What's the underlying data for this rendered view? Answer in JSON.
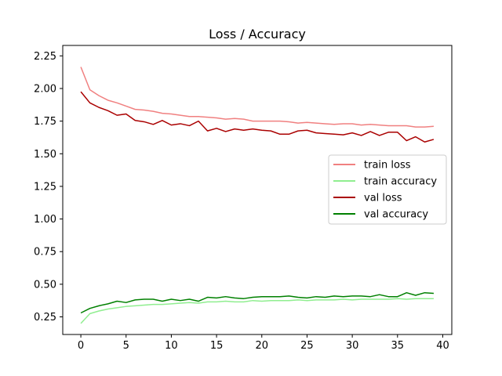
{
  "chart_data": {
    "type": "line",
    "title": "Loss / Accuracy",
    "xlabel": "",
    "ylabel": "",
    "xlim": [
      -2,
      41
    ],
    "ylim": [
      0.115,
      2.33
    ],
    "x_ticks": [
      0,
      5,
      10,
      15,
      20,
      25,
      30,
      35,
      40
    ],
    "y_ticks": [
      0.25,
      0.5,
      0.75,
      1.0,
      1.25,
      1.5,
      1.75,
      2.0,
      2.25
    ],
    "x_tick_labels": [
      "0",
      "5",
      "10",
      "15",
      "20",
      "25",
      "30",
      "35",
      "40"
    ],
    "y_tick_labels": [
      "0.25",
      "0.50",
      "0.75",
      "1.00",
      "1.25",
      "1.50",
      "1.75",
      "2.00",
      "2.25"
    ],
    "grid": false,
    "legend_position": "center-right",
    "x": [
      0,
      1,
      2,
      3,
      4,
      5,
      6,
      7,
      8,
      9,
      10,
      11,
      12,
      13,
      14,
      15,
      16,
      17,
      18,
      19,
      20,
      21,
      22,
      23,
      24,
      25,
      26,
      27,
      28,
      29,
      30,
      31,
      32,
      33,
      34,
      35,
      36,
      37,
      38,
      39
    ],
    "series": [
      {
        "name": "train loss",
        "color": "#f08080",
        "values": [
          2.165,
          1.99,
          1.945,
          1.91,
          1.89,
          1.865,
          1.84,
          1.835,
          1.825,
          1.81,
          1.805,
          1.795,
          1.785,
          1.785,
          1.78,
          1.775,
          1.765,
          1.77,
          1.765,
          1.75,
          1.75,
          1.75,
          1.75,
          1.745,
          1.735,
          1.74,
          1.735,
          1.73,
          1.725,
          1.73,
          1.73,
          1.72,
          1.725,
          1.72,
          1.715,
          1.715,
          1.715,
          1.705,
          1.705,
          1.71
        ]
      },
      {
        "name": "train accuracy",
        "color": "#90ee90",
        "values": [
          0.2,
          0.275,
          0.295,
          0.31,
          0.32,
          0.33,
          0.335,
          0.34,
          0.345,
          0.345,
          0.35,
          0.355,
          0.36,
          0.355,
          0.365,
          0.365,
          0.37,
          0.365,
          0.365,
          0.375,
          0.37,
          0.375,
          0.375,
          0.375,
          0.38,
          0.375,
          0.38,
          0.38,
          0.38,
          0.385,
          0.38,
          0.385,
          0.385,
          0.385,
          0.385,
          0.39,
          0.385,
          0.39,
          0.39,
          0.39
        ]
      },
      {
        "name": "val loss",
        "color": "#aa0000",
        "values": [
          1.975,
          1.89,
          1.855,
          1.83,
          1.795,
          1.805,
          1.755,
          1.745,
          1.725,
          1.755,
          1.72,
          1.73,
          1.715,
          1.75,
          1.675,
          1.695,
          1.67,
          1.69,
          1.68,
          1.69,
          1.68,
          1.675,
          1.65,
          1.65,
          1.675,
          1.68,
          1.66,
          1.655,
          1.65,
          1.645,
          1.66,
          1.64,
          1.67,
          1.64,
          1.665,
          1.665,
          1.6,
          1.63,
          1.59,
          1.61
        ]
      },
      {
        "name": "val accuracy",
        "color": "#008000",
        "values": [
          0.28,
          0.315,
          0.335,
          0.35,
          0.37,
          0.36,
          0.38,
          0.385,
          0.385,
          0.37,
          0.385,
          0.375,
          0.385,
          0.37,
          0.4,
          0.395,
          0.405,
          0.395,
          0.39,
          0.4,
          0.405,
          0.405,
          0.405,
          0.41,
          0.4,
          0.395,
          0.405,
          0.4,
          0.41,
          0.405,
          0.41,
          0.41,
          0.405,
          0.42,
          0.405,
          0.405,
          0.435,
          0.415,
          0.435,
          0.43
        ]
      }
    ]
  }
}
